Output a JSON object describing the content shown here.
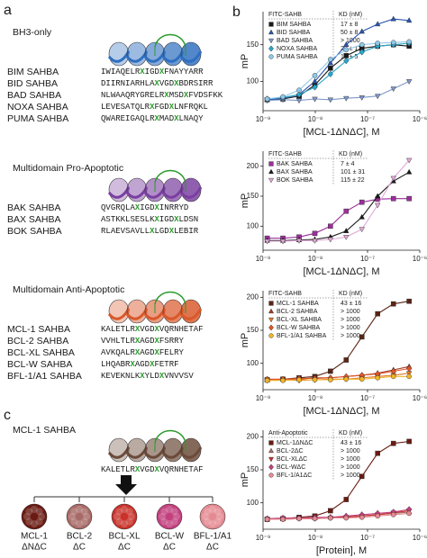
{
  "panel_labels": [
    "a",
    "b",
    "c"
  ],
  "panel_a": {
    "groups": [
      {
        "title": "BH3-only",
        "helix_color": "#2f6fc0",
        "peptides": [
          {
            "name": "BIM SAHBA",
            "sequence": "IWIAQELRXIGDXFNAYYARR",
            "color": "#1f2a6b"
          },
          {
            "name": "BID SAHBA",
            "sequence": "DIIRNIARHLAXVGDXBDRSIRR",
            "color": "#2b55b0"
          },
          {
            "name": "BAD SAHBA",
            "sequence": "NLWAAQRYGRELRXMSDXFVDSFKK",
            "color": "#7f97c9"
          },
          {
            "name": "NOXA SAHBA",
            "sequence": "LEVESATQLRXFGDXLNFRQKL",
            "color": "#2aa7c9"
          },
          {
            "name": "PUMA SAHBA",
            "sequence": "QWAREIGAQLRXMADXLNAQY",
            "color": "#a9d4ea"
          }
        ]
      },
      {
        "title": "Multidomain Pro-Apoptotic",
        "helix_color": "#7a3fa0",
        "peptides": [
          {
            "name": "BAK SAHBA",
            "sequence": "QVGRQLAXIGDXINRRYD",
            "color": "#9a2f9a"
          },
          {
            "name": "BAX SAHBA",
            "sequence": "ASTKKLSESLKXIGDXLDSN",
            "color": "#1a1a1a"
          },
          {
            "name": "BOK SAHBA",
            "sequence": "RLAEVSAVLLXLGDXLEBIR",
            "color": "#e2a9d6"
          }
        ]
      },
      {
        "title": "Multidomain Anti-Apoptotic",
        "helix_color": "#d9582a",
        "peptides": [
          {
            "name": "MCL-1 SAHBA",
            "sequence": "KALETLRXVGDXVQRNHETAF",
            "color": "#5a2414"
          },
          {
            "name": "BCL-2 SAHBA",
            "sequence": "VVHLTLRXAGDXFSRRY",
            "color": "#a33a22"
          },
          {
            "name": "BCL-XL SAHBA",
            "sequence": "AVKQALRXAGDXFELRY",
            "color": "#e07a2a"
          },
          {
            "name": "BCL-W SAHBA",
            "sequence": "LHQABRXAGDXFETRF",
            "color": "#e0552a"
          },
          {
            "name": "BFL-1/A1 SAHBA",
            "sequence": "KEVEKNLKXYLDXVNVVSV",
            "color": "#f0b429"
          }
        ]
      }
    ]
  },
  "panel_c": {
    "title": "MCL-1 SAHBA",
    "helix_color": "#6b4a3a",
    "sequence": "KALETLRXVGDXVQRNHETAF",
    "proteins": [
      {
        "lines": [
          "MCL-1",
          "ΔNΔC"
        ],
        "color": "#6a1a12"
      },
      {
        "lines": [
          "BCL-2",
          "ΔC"
        ],
        "color": "#a86a66"
      },
      {
        "lines": [
          "BCL-XL",
          "ΔC"
        ],
        "color": "#c8322a"
      },
      {
        "lines": [
          "BCL-W",
          "ΔC"
        ],
        "color": "#c2407e"
      },
      {
        "lines": [
          "BFL-1/A1",
          "ΔC"
        ],
        "color": "#e48a92"
      }
    ]
  },
  "chart_data": [
    {
      "type": "line",
      "legend_title": "FITC-SAHB",
      "kd_header": "KD (nM)",
      "x_label": "[MCL-1ΔNΔC], M",
      "y_label": "mP",
      "xscale": "log",
      "x": [
        1.2e-09,
        2.4e-09,
        4.9e-09,
        9.8e-09,
        1.95e-08,
        3.9e-08,
        7.8e-08,
        1.56e-07,
        3.13e-07,
        6.25e-07
      ],
      "xlim": [
        1e-09,
        1e-06
      ],
      "xticks": [
        {
          "value": 1e-09,
          "label": "10⁻⁹"
        },
        {
          "value": 1e-08,
          "label": "10⁻⁸"
        },
        {
          "value": 1e-07,
          "label": "10⁻⁷"
        },
        {
          "value": 1e-06,
          "label": "10⁻⁶"
        }
      ],
      "ylim": [
        60,
        195
      ],
      "yticks": [
        100,
        150
      ],
      "series": [
        {
          "name": "BIM SAHBA",
          "kd": "17 ± 8",
          "color": "#1a1a1a",
          "marker": "square",
          "values": [
            75,
            76,
            80,
            95,
            118,
            135,
            145,
            148,
            150,
            148
          ]
        },
        {
          "name": "BID SAHBA",
          "kd": "50 ± 8",
          "color": "#2b55b0",
          "marker": "triangle",
          "values": [
            75,
            77,
            82,
            100,
            125,
            150,
            168,
            178,
            185,
            183
          ]
        },
        {
          "name": "BAD SAHBA",
          "kd": "> 1000",
          "color": "#7f97c9",
          "marker": "triangle-down",
          "values": [
            74,
            75,
            74,
            76,
            75,
            77,
            78,
            80,
            90,
            100
          ]
        },
        {
          "name": "NOXA SAHBA",
          "kd": "22 ± 12",
          "color": "#2aa7c9",
          "marker": "diamond",
          "values": [
            76,
            78,
            82,
            92,
            110,
            128,
            140,
            148,
            150,
            152
          ]
        },
        {
          "name": "PUMA SAHBA",
          "kd": "14 ± 5",
          "color": "#8fc8e8",
          "marker": "circle",
          "values": [
            76,
            79,
            88,
            108,
            130,
            143,
            150,
            152,
            153,
            154
          ]
        }
      ]
    },
    {
      "type": "line",
      "legend_title": "FITC-SAHB",
      "kd_header": "KD (nM)",
      "x_label": "[MCL-1ΔNΔC], M",
      "y_label": "mP",
      "xscale": "log",
      "x": [
        1.2e-09,
        2.4e-09,
        4.9e-09,
        9.8e-09,
        1.95e-08,
        3.9e-08,
        7.8e-08,
        1.56e-07,
        3.13e-07,
        6.25e-07
      ],
      "xlim": [
        1e-09,
        1e-06
      ],
      "xticks": [
        {
          "value": 1e-09,
          "label": "10⁻⁹"
        },
        {
          "value": 1e-08,
          "label": "10⁻⁸"
        },
        {
          "value": 1e-07,
          "label": "10⁻⁷"
        },
        {
          "value": 1e-06,
          "label": "10⁻⁶"
        }
      ],
      "ylim": [
        60,
        225
      ],
      "yticks": [
        100,
        150,
        200
      ],
      "series": [
        {
          "name": "BAK SAHBA",
          "kd": "7 ± 4",
          "color": "#9a2f9a",
          "marker": "square",
          "values": [
            80,
            80,
            82,
            88,
            100,
            125,
            140,
            145,
            146,
            146
          ]
        },
        {
          "name": "BAX SAHBA",
          "kd": "101 ± 31",
          "color": "#1a1a1a",
          "marker": "triangle",
          "values": [
            76,
            76,
            77,
            78,
            82,
            92,
            115,
            150,
            175,
            190
          ]
        },
        {
          "name": "BOK SAHBA",
          "kd": "115 ± 22",
          "color": "#e2a9d6",
          "marker": "triangle-down",
          "values": [
            75,
            75,
            76,
            76,
            78,
            82,
            95,
            135,
            180,
            210
          ]
        }
      ]
    },
    {
      "type": "line",
      "legend_title": "FITC-SAHB",
      "kd_header": "KD (nM)",
      "x_label": "[MCL-1ΔNΔC], M",
      "y_label": "mP",
      "xscale": "log",
      "x": [
        1.2e-09,
        2.4e-09,
        4.9e-09,
        9.8e-09,
        1.95e-08,
        3.9e-08,
        7.8e-08,
        1.56e-07,
        3.13e-07,
        6.25e-07
      ],
      "xlim": [
        1e-09,
        1e-06
      ],
      "xticks": [
        {
          "value": 1e-09,
          "label": "10⁻⁹"
        },
        {
          "value": 1e-08,
          "label": "10⁻⁸"
        },
        {
          "value": 1e-07,
          "label": "10⁻⁷"
        },
        {
          "value": 1e-06,
          "label": "10⁻⁶"
        }
      ],
      "ylim": [
        60,
        210
      ],
      "yticks": [
        100,
        150,
        200
      ],
      "series": [
        {
          "name": "MCL-1 SAHBA",
          "kd": "43 ± 16",
          "color": "#5a2414",
          "marker": "square",
          "values": [
            75,
            76,
            78,
            80,
            88,
            105,
            140,
            175,
            190,
            194
          ]
        },
        {
          "name": "BCL-2 SAHBA",
          "kd": "> 1000",
          "color": "#a33a22",
          "marker": "triangle",
          "values": [
            75,
            76,
            76,
            78,
            78,
            80,
            82,
            85,
            90,
            95
          ]
        },
        {
          "name": "BCL-XL SAHBA",
          "kd": "> 1000",
          "color": "#e07a2a",
          "marker": "triangle-down",
          "values": [
            74,
            75,
            74,
            75,
            76,
            76,
            78,
            80,
            82,
            85
          ]
        },
        {
          "name": "BCL-W SAHBA",
          "kd": "> 1000",
          "color": "#e0552a",
          "marker": "diamond",
          "values": [
            76,
            76,
            77,
            77,
            78,
            80,
            82,
            84,
            88,
            92
          ]
        },
        {
          "name": "BFL-1/A1 SAHBA",
          "kd": "> 1000",
          "color": "#f0b429",
          "marker": "circle",
          "values": [
            74,
            74,
            75,
            75,
            75,
            76,
            76,
            78,
            80,
            80
          ]
        }
      ]
    },
    {
      "type": "line",
      "legend_title": "Anti-Apoptotic",
      "kd_header": "KD (nM)",
      "x_label": "[Protein], M",
      "y_label": "mP",
      "xscale": "log",
      "x": [
        1.2e-09,
        2.4e-09,
        4.9e-09,
        9.8e-09,
        1.95e-08,
        3.9e-08,
        7.8e-08,
        1.56e-07,
        3.13e-07,
        6.25e-07
      ],
      "xlim": [
        1e-09,
        1e-06
      ],
      "xticks": [
        {
          "value": 1e-09,
          "label": "10⁻⁹"
        },
        {
          "value": 1e-08,
          "label": "10⁻⁸"
        },
        {
          "value": 1e-07,
          "label": "10⁻⁷"
        },
        {
          "value": 1e-06,
          "label": "10⁻⁶"
        }
      ],
      "ylim": [
        60,
        210
      ],
      "yticks": [
        100,
        150,
        200
      ],
      "series": [
        {
          "name": "MCL-1ΔNΔC",
          "kd": "43 ± 16",
          "color": "#6a1a12",
          "marker": "square",
          "values": [
            75,
            76,
            78,
            80,
            88,
            105,
            140,
            175,
            190,
            193
          ]
        },
        {
          "name": "BCL-2ΔC",
          "kd": "> 1000",
          "color": "#a86a66",
          "marker": "triangle",
          "values": [
            76,
            76,
            77,
            77,
            78,
            79,
            80,
            82,
            84,
            86
          ]
        },
        {
          "name": "BCL-XLΔC",
          "kd": "> 1000",
          "color": "#c8322a",
          "marker": "triangle-down",
          "values": [
            75,
            75,
            76,
            76,
            77,
            78,
            80,
            82,
            85,
            88
          ]
        },
        {
          "name": "BCL-WΔC",
          "kd": "> 1000",
          "color": "#c2407e",
          "marker": "diamond",
          "values": [
            76,
            77,
            77,
            78,
            78,
            80,
            82,
            84,
            86,
            90
          ]
        },
        {
          "name": "BFL-1/A1ΔC",
          "kd": "> 1000",
          "color": "#e48a92",
          "marker": "circle",
          "values": [
            75,
            75,
            76,
            76,
            77,
            77,
            78,
            80,
            82,
            84
          ]
        }
      ]
    }
  ]
}
